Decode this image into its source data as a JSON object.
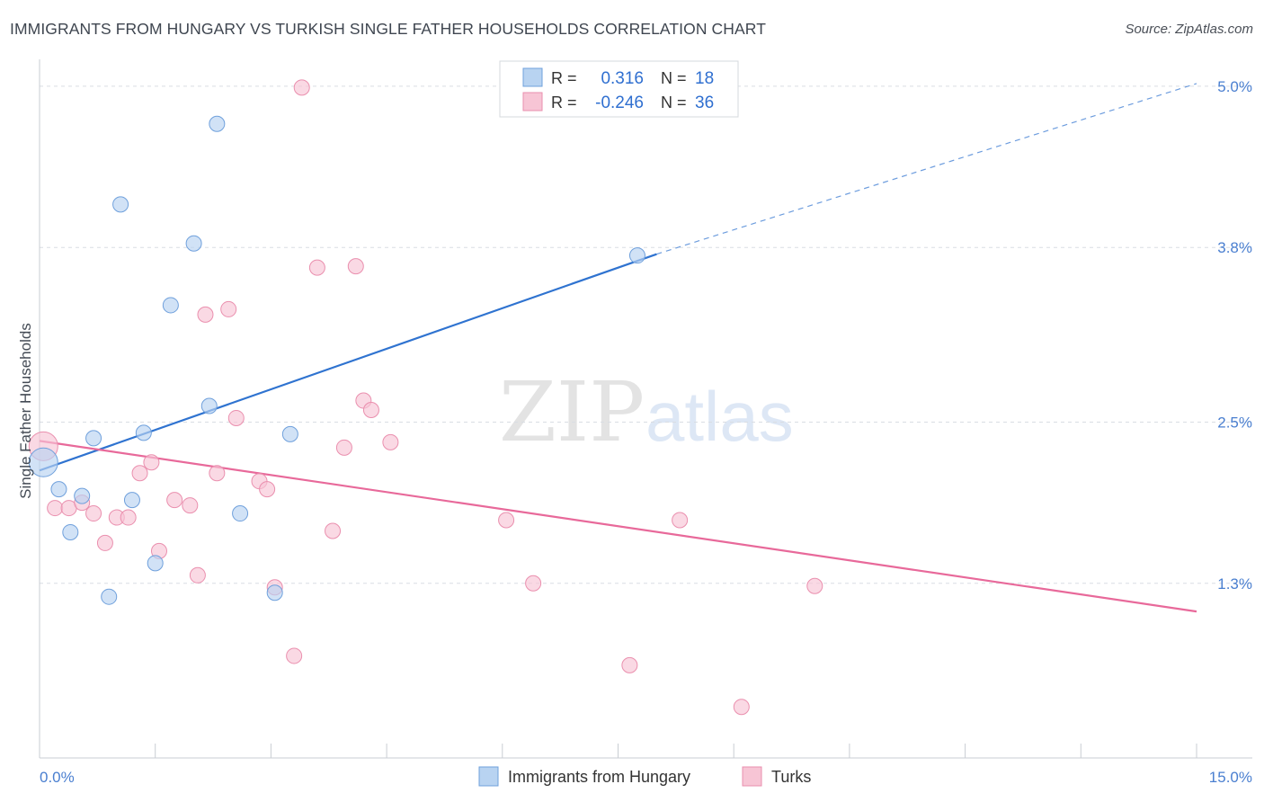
{
  "title": "IMMIGRANTS FROM HUNGARY VS TURKISH SINGLE FATHER HOUSEHOLDS CORRELATION CHART",
  "source": "Source: ZipAtlas.com",
  "watermark": {
    "zip": "ZIP",
    "atlas": "atlas"
  },
  "colors": {
    "blue_fill": "#b8d3f1",
    "blue_stroke": "#6fa0dc",
    "blue_line": "#2f73d0",
    "pink_fill": "#f7c5d5",
    "pink_stroke": "#ea8fae",
    "pink_line": "#e8699a",
    "tick_label": "#4a7fd0",
    "grid": "#d9dde3",
    "axis_text": "#444b55"
  },
  "legend": {
    "rows": [
      {
        "r_label": "R =",
        "r_value": "0.316",
        "n_label": "N =",
        "n_value": "18"
      },
      {
        "r_label": "R =",
        "r_value": "-0.246",
        "n_label": "N =",
        "n_value": "36"
      }
    ]
  },
  "bottom_legend": {
    "series1": "Immigrants from Hungary",
    "series2": "Turks"
  },
  "chart_data": {
    "type": "scatter",
    "title": "IMMIGRANTS FROM HUNGARY VS TURKISH SINGLE FATHER HOUSEHOLDS CORRELATION CHART",
    "xlabel": "",
    "ylabel": "Single Father Households",
    "xlim": [
      0.0,
      15.0
    ],
    "ylim": [
      0.0,
      5.2
    ],
    "x_tick_labels": [
      "0.0%",
      "15.0%"
    ],
    "y_ticks": [
      1.3,
      2.5,
      3.8,
      5.0
    ],
    "y_tick_labels": [
      "1.3%",
      "2.5%",
      "3.8%",
      "5.0%"
    ],
    "grid": true,
    "legend_position": "top-center",
    "series": [
      {
        "name": "Immigrants from Hungary",
        "color": "#b8d3f1",
        "r": 0.316,
        "n": 18,
        "trend": {
          "x_start": 0.0,
          "y_start": 2.14,
          "x_solid_end": 8.0,
          "y_solid_end": 3.75,
          "x_end": 15.0,
          "y_end": 5.02
        },
        "points": [
          {
            "x": 0.05,
            "y": 2.2,
            "size": "large"
          },
          {
            "x": 0.25,
            "y": 2.0
          },
          {
            "x": 0.4,
            "y": 1.68
          },
          {
            "x": 0.55,
            "y": 1.95
          },
          {
            "x": 0.7,
            "y": 2.38
          },
          {
            "x": 0.9,
            "y": 1.2
          },
          {
            "x": 1.05,
            "y": 4.12
          },
          {
            "x": 1.2,
            "y": 1.92
          },
          {
            "x": 1.35,
            "y": 2.42
          },
          {
            "x": 1.5,
            "y": 1.45
          },
          {
            "x": 1.7,
            "y": 3.37
          },
          {
            "x": 2.0,
            "y": 3.83
          },
          {
            "x": 2.2,
            "y": 2.62
          },
          {
            "x": 2.3,
            "y": 4.72
          },
          {
            "x": 2.6,
            "y": 1.82
          },
          {
            "x": 3.05,
            "y": 1.23
          },
          {
            "x": 3.25,
            "y": 2.41
          },
          {
            "x": 7.75,
            "y": 3.74
          }
        ]
      },
      {
        "name": "Turks",
        "color": "#f7c5d5",
        "r": -0.246,
        "n": 36,
        "trend": {
          "x_start": 0.0,
          "y_start": 2.36,
          "x_end": 15.0,
          "y_end": 1.09
        },
        "points": [
          {
            "x": 0.05,
            "y": 2.32,
            "size": "large"
          },
          {
            "x": 0.2,
            "y": 1.86
          },
          {
            "x": 0.38,
            "y": 1.86
          },
          {
            "x": 0.55,
            "y": 1.9
          },
          {
            "x": 0.7,
            "y": 1.82
          },
          {
            "x": 0.85,
            "y": 1.6
          },
          {
            "x": 1.0,
            "y": 1.79
          },
          {
            "x": 1.15,
            "y": 1.79
          },
          {
            "x": 1.3,
            "y": 2.12
          },
          {
            "x": 1.45,
            "y": 2.2
          },
          {
            "x": 1.55,
            "y": 1.54
          },
          {
            "x": 1.75,
            "y": 1.92
          },
          {
            "x": 1.95,
            "y": 1.88
          },
          {
            "x": 2.05,
            "y": 1.36
          },
          {
            "x": 2.15,
            "y": 3.3
          },
          {
            "x": 2.3,
            "y": 2.12
          },
          {
            "x": 2.45,
            "y": 3.34
          },
          {
            "x": 2.55,
            "y": 2.53
          },
          {
            "x": 2.85,
            "y": 2.06
          },
          {
            "x": 2.95,
            "y": 2.0
          },
          {
            "x": 3.05,
            "y": 1.27
          },
          {
            "x": 3.3,
            "y": 0.76
          },
          {
            "x": 3.4,
            "y": 4.99
          },
          {
            "x": 3.6,
            "y": 3.65
          },
          {
            "x": 3.8,
            "y": 1.69
          },
          {
            "x": 3.95,
            "y": 2.31
          },
          {
            "x": 4.1,
            "y": 3.66
          },
          {
            "x": 4.2,
            "y": 2.66
          },
          {
            "x": 4.3,
            "y": 2.59
          },
          {
            "x": 4.55,
            "y": 2.35
          },
          {
            "x": 6.05,
            "y": 1.77
          },
          {
            "x": 6.4,
            "y": 1.3
          },
          {
            "x": 7.65,
            "y": 0.69
          },
          {
            "x": 8.3,
            "y": 1.77
          },
          {
            "x": 9.1,
            "y": 0.38
          },
          {
            "x": 10.05,
            "y": 1.28
          }
        ]
      }
    ]
  }
}
